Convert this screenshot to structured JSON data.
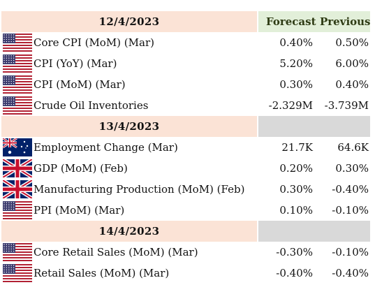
{
  "header": {
    "forecast_label": "Forecast",
    "previous_label": "Previous"
  },
  "groups": [
    {
      "date": "12/4/2023",
      "events": [
        {
          "flag": "us",
          "name": "Core CPI (MoM) (Mar)",
          "forecast": "0.40%",
          "previous": "0.50%"
        },
        {
          "flag": "us",
          "name": "CPI (YoY) (Mar)",
          "forecast": "5.20%",
          "previous": "6.00%"
        },
        {
          "flag": "us",
          "name": "CPI (MoM) (Mar)",
          "forecast": "0.30%",
          "previous": "0.40%"
        },
        {
          "flag": "us",
          "name": "Crude Oil Inventories",
          "forecast": "-2.329M",
          "previous": "-3.739M"
        }
      ]
    },
    {
      "date": "13/4/2023",
      "events": [
        {
          "flag": "au",
          "name": "Employment Change (Mar)",
          "forecast": "21.7K",
          "previous": "64.6K"
        },
        {
          "flag": "uk",
          "name": "GDP (MoM) (Feb)",
          "forecast": "0.20%",
          "previous": "0.30%"
        },
        {
          "flag": "uk",
          "name": "Manufacturing Production (MoM) (Feb)",
          "forecast": "0.30%",
          "previous": "-0.40%"
        },
        {
          "flag": "us",
          "name": "PPI (MoM) (Mar)",
          "forecast": "0.10%",
          "previous": "-0.10%"
        }
      ]
    },
    {
      "date": "14/4/2023",
      "events": [
        {
          "flag": "us",
          "name": "Core Retail Sales (MoM) (Mar)",
          "forecast": "-0.30%",
          "previous": "-0.10%"
        },
        {
          "flag": "us",
          "name": "Retail Sales (MoM) (Mar)",
          "forecast": "-0.40%",
          "previous": "-0.40%"
        }
      ]
    }
  ],
  "colors": {
    "date_band": "#fbe3d6",
    "forecast_band": "#e2efd9",
    "grey_band": "#d9d9d9"
  }
}
